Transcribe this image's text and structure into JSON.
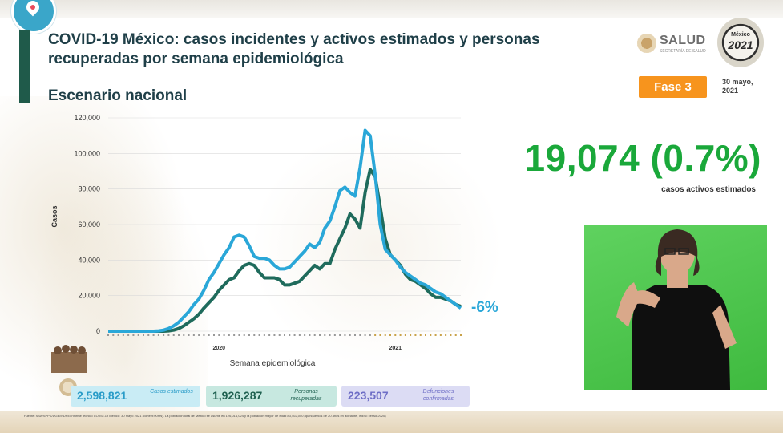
{
  "header": {
    "title": "COVID-19 México: casos incidentes y activos estimados y personas recuperadas por semana epidemiológica",
    "subtitle": "Escenario nacional"
  },
  "logos": {
    "salud": "SALUD",
    "salud_sub": "SECRETARÍA DE SALUD",
    "mx2021_text": "México",
    "mx2021_year": "2021"
  },
  "phase": {
    "label": "Fase 3"
  },
  "date": {
    "line1": "30 mayo,",
    "line2": "2021"
  },
  "active": {
    "value": "19,074 (0.7%)",
    "caption": "casos activos estimados"
  },
  "chart_data": {
    "type": "line",
    "ylabel": "Casos",
    "xlabel": "Semana epidemiológica",
    "ylim": [
      0,
      120000
    ],
    "yticks": [
      "120,000",
      "100,000",
      "80,000",
      "60,000",
      "40,000",
      "20,000",
      "0"
    ],
    "xtick_labels": [
      "2020",
      "2021"
    ],
    "annotation": "-6%",
    "colors": {
      "incidentes": "#2aa7d8",
      "activos": "#1f6b5c",
      "annotation": "#2aa7d8"
    },
    "series": [
      {
        "key": "incidentes",
        "values": [
          0,
          0,
          0,
          0,
          0,
          0,
          0,
          0,
          0,
          0,
          200,
          600,
          1500,
          3000,
          5000,
          8000,
          11000,
          15000,
          18000,
          23000,
          29000,
          33000,
          38000,
          43000,
          47000,
          53000,
          54000,
          53000,
          48000,
          42000,
          41000,
          41000,
          40000,
          37000,
          35000,
          35000,
          36000,
          39000,
          42000,
          45000,
          49000,
          47000,
          50000,
          58000,
          62000,
          70000,
          79000,
          81000,
          78000,
          76000,
          92000,
          113000,
          110000,
          88000,
          60000,
          46000,
          43000,
          40000,
          36000,
          33000,
          31000,
          29000,
          27000,
          26000,
          24000,
          22000,
          21000,
          19000,
          17000,
          15000,
          13000
        ]
      },
      {
        "key": "activos",
        "values": [
          0,
          0,
          0,
          0,
          0,
          0,
          0,
          0,
          0,
          0,
          0,
          0,
          200,
          600,
          1500,
          3000,
          5000,
          7000,
          9500,
          13000,
          16000,
          19000,
          23000,
          26000,
          29000,
          30000,
          34000,
          37000,
          38000,
          37000,
          33000,
          30000,
          30000,
          30000,
          29000,
          26000,
          26000,
          27000,
          28000,
          31000,
          34000,
          37000,
          35000,
          38000,
          38000,
          46000,
          52000,
          58000,
          66000,
          63000,
          58000,
          78000,
          91000,
          87000,
          70000,
          52000,
          43000,
          40000,
          37000,
          32000,
          29000,
          28000,
          26000,
          24000,
          21000,
          19000,
          19000,
          18000,
          17000,
          15000,
          14000
        ]
      }
    ]
  },
  "summary": {
    "cases": {
      "value": "2,598,821",
      "label": "Casos estimados"
    },
    "recovered": {
      "value": "1,926,287",
      "label": "Personas recuperadas"
    },
    "deaths": {
      "value": "223,507",
      "label": "Defunciones confirmadas"
    }
  },
  "footnote": "Fuente: SSA/SPPS/DGE/InDRE/Informe técnico COVID-19 México: 30 mayo 2021 (corte 9:00hrs). La población total de México se asume en 126,014,024 y la población mayor de edad 83,402,050 (quinquenios de 20 años en adelante, INEGI censo 2020)"
}
